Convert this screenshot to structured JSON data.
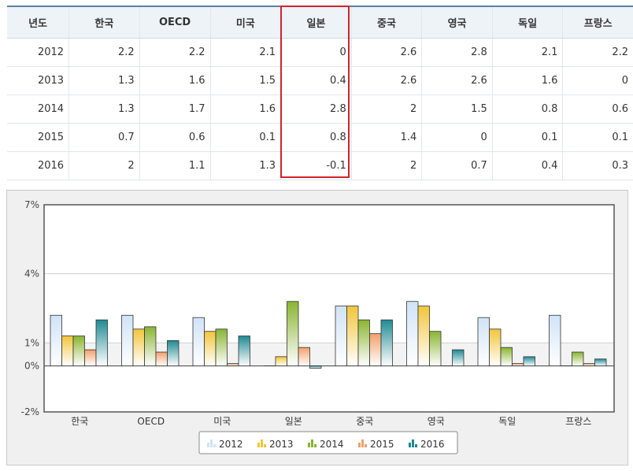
{
  "table": {
    "headers": [
      "년도",
      "한국",
      "OECD",
      "미국",
      "일본",
      "중국",
      "영국",
      "독일",
      "프랑스"
    ],
    "rows": [
      [
        "2012",
        "2.2",
        "2.2",
        "2.1",
        "0",
        "2.6",
        "2.8",
        "2.1",
        "2.2"
      ],
      [
        "2013",
        "1.3",
        "1.6",
        "1.5",
        "0.4",
        "2.6",
        "2.6",
        "1.6",
        "0"
      ],
      [
        "2014",
        "1.3",
        "1.7",
        "1.6",
        "2.8",
        "2",
        "1.5",
        "0.8",
        "0.6"
      ],
      [
        "2015",
        "0.7",
        "0.6",
        "0.1",
        "0.8",
        "1.4",
        "0",
        "0.1",
        "0.1"
      ],
      [
        "2016",
        "2",
        "1.1",
        "1.3",
        "-0.1",
        "2",
        "0.7",
        "0.4",
        "0.3"
      ]
    ]
  },
  "chart_data": {
    "type": "bar",
    "categories": [
      "한국",
      "OECD",
      "미국",
      "일본",
      "중국",
      "영국",
      "독일",
      "프랑스"
    ],
    "series": [
      {
        "name": "2012",
        "values": [
          2.2,
          2.2,
          2.1,
          0,
          2.6,
          2.8,
          2.1,
          2.2
        ],
        "color": "#cfe3f7"
      },
      {
        "name": "2013",
        "values": [
          1.3,
          1.6,
          1.5,
          0.4,
          2.6,
          2.6,
          1.6,
          0
        ],
        "color": "#f2c53a"
      },
      {
        "name": "2014",
        "values": [
          1.3,
          1.7,
          1.6,
          2.8,
          2,
          1.5,
          0.8,
          0.6
        ],
        "color": "#8ab431"
      },
      {
        "name": "2015",
        "values": [
          0.7,
          0.6,
          0.1,
          0.8,
          1.4,
          0,
          0.1,
          0.1
        ],
        "color": "#f2a06a"
      },
      {
        "name": "2016",
        "values": [
          2,
          1.1,
          1.3,
          -0.1,
          2,
          0.7,
          0.4,
          0.3
        ],
        "color": "#1f8a93"
      }
    ],
    "yticks": [
      "7%",
      "4%",
      "1%",
      "0%",
      "-2%"
    ],
    "ytick_values": [
      7,
      4,
      1,
      0,
      -2
    ],
    "ylim": [
      -2,
      7
    ],
    "legend_position": "bottom",
    "title": "",
    "xlabel": "",
    "ylabel": ""
  }
}
